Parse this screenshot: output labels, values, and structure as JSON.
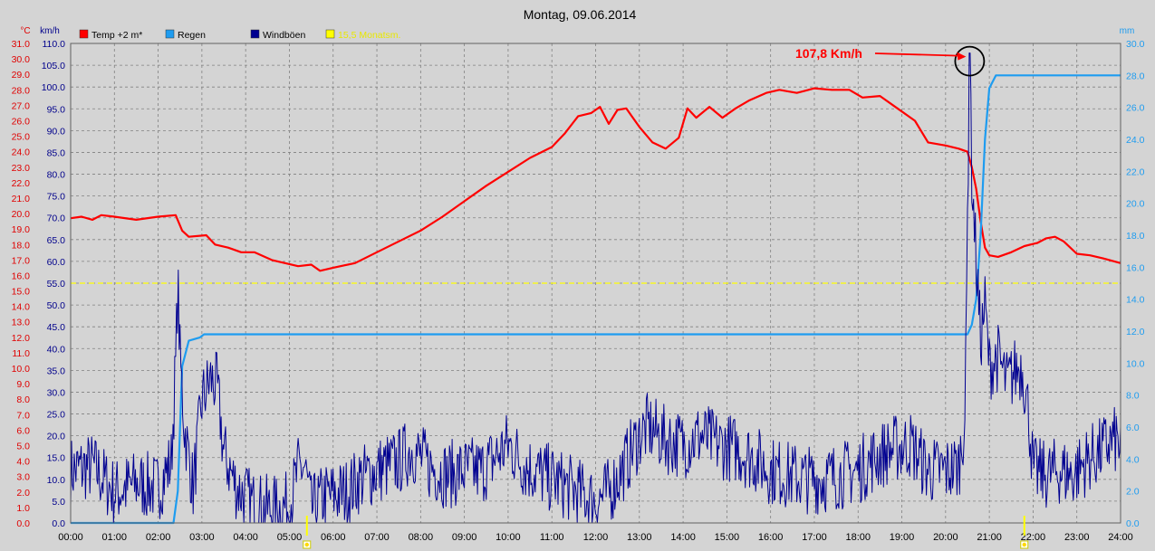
{
  "chart_data": {
    "type": "line",
    "title": "Montag, 09.06.2014",
    "axis_units": {
      "temp": "°C",
      "wind": "km/h",
      "rain": "mm"
    },
    "x_axis": {
      "range_hours": [
        0,
        24
      ],
      "tick_labels": [
        "00:00",
        "01:00",
        "02:00",
        "03:00",
        "04:00",
        "05:00",
        "06:00",
        "07:00",
        "08:00",
        "09:00",
        "10:00",
        "11:00",
        "12:00",
        "13:00",
        "14:00",
        "15:00",
        "16:00",
        "17:00",
        "18:00",
        "19:00",
        "20:00",
        "21:00",
        "22:00",
        "23:00",
        "24:00"
      ]
    },
    "temp_axis": {
      "range": [
        0,
        31
      ],
      "tick_labels": [
        "0.0",
        "1.0",
        "2.0",
        "3.0",
        "4.0",
        "5.0",
        "6.0",
        "7.0",
        "8.0",
        "9.0",
        "10.0",
        "11.0",
        "12.0",
        "13.0",
        "14.0",
        "15.0",
        "16.0",
        "17.0",
        "18.0",
        "19.0",
        "20.0",
        "21.0",
        "22.0",
        "23.0",
        "24.0",
        "25.0",
        "26.0",
        "27.0",
        "28.0",
        "29.0",
        "30.0",
        "31.0"
      ]
    },
    "wind_axis": {
      "range": [
        0,
        110
      ],
      "tick_labels": [
        "0.0",
        "5.0",
        "10.0",
        "15.0",
        "20.0",
        "25.0",
        "30.0",
        "35.0",
        "40.0",
        "45.0",
        "50.0",
        "55.0",
        "60.0",
        "65.0",
        "70.0",
        "75.0",
        "80.0",
        "85.0",
        "90.0",
        "95.0",
        "100.0",
        "105.0",
        "110.0"
      ]
    },
    "rain_axis": {
      "range": [
        0,
        30
      ],
      "tick_labels": [
        "0.0",
        "2.0",
        "4.0",
        "6.0",
        "8.0",
        "10.0",
        "12.0",
        "14.0",
        "16.0",
        "18.0",
        "20.0",
        "22.0",
        "24.0",
        "26.0",
        "28.0",
        "30.0"
      ]
    },
    "grid": true,
    "legend": [
      {
        "label": "Temp +2 m*",
        "color": "#ff0000"
      },
      {
        "label": "Regen",
        "color": "#1e9cf0"
      },
      {
        "label": "Windböen",
        "color": "#000090"
      },
      {
        "label": "15,5 Monatsm.",
        "color": "#ffff00"
      }
    ],
    "reference_line": {
      "axis": "temp",
      "value": 15.5,
      "color": "#ffff00",
      "style": "dashed"
    },
    "sun_markers_hours": [
      5.4,
      21.8
    ],
    "series": [
      {
        "name": "Temp +2 m*",
        "axis": "temp",
        "color": "#ff0000",
        "points": [
          [
            0,
            19.7
          ],
          [
            0.25,
            19.8
          ],
          [
            0.5,
            19.6
          ],
          [
            0.7,
            19.9
          ],
          [
            1,
            19.8
          ],
          [
            1.5,
            19.6
          ],
          [
            2,
            19.8
          ],
          [
            2.4,
            19.9
          ],
          [
            2.55,
            18.9
          ],
          [
            2.7,
            18.5
          ],
          [
            3.1,
            18.6
          ],
          [
            3.3,
            18.0
          ],
          [
            3.6,
            17.8
          ],
          [
            3.9,
            17.5
          ],
          [
            4.2,
            17.5
          ],
          [
            4.6,
            17.0
          ],
          [
            4.9,
            16.8
          ],
          [
            5.2,
            16.6
          ],
          [
            5.5,
            16.7
          ],
          [
            5.7,
            16.3
          ],
          [
            6,
            16.5
          ],
          [
            6.5,
            16.8
          ],
          [
            7,
            17.5
          ],
          [
            7.5,
            18.2
          ],
          [
            8,
            18.9
          ],
          [
            8.5,
            19.8
          ],
          [
            9,
            20.8
          ],
          [
            9.5,
            21.8
          ],
          [
            10,
            22.7
          ],
          [
            10.5,
            23.6
          ],
          [
            11,
            24.3
          ],
          [
            11.3,
            25.2
          ],
          [
            11.6,
            26.3
          ],
          [
            11.9,
            26.5
          ],
          [
            12.1,
            26.9
          ],
          [
            12.3,
            25.8
          ],
          [
            12.5,
            26.7
          ],
          [
            12.7,
            26.8
          ],
          [
            13,
            25.6
          ],
          [
            13.3,
            24.6
          ],
          [
            13.6,
            24.2
          ],
          [
            13.9,
            24.9
          ],
          [
            14.1,
            26.8
          ],
          [
            14.3,
            26.2
          ],
          [
            14.6,
            26.9
          ],
          [
            14.9,
            26.2
          ],
          [
            15.2,
            26.8
          ],
          [
            15.5,
            27.3
          ],
          [
            15.9,
            27.8
          ],
          [
            16.2,
            28.0
          ],
          [
            16.6,
            27.8
          ],
          [
            17,
            28.1
          ],
          [
            17.4,
            28.0
          ],
          [
            17.8,
            28.0
          ],
          [
            18.1,
            27.5
          ],
          [
            18.5,
            27.6
          ],
          [
            18.9,
            26.8
          ],
          [
            19.3,
            26.0
          ],
          [
            19.6,
            24.6
          ],
          [
            20,
            24.4
          ],
          [
            20.3,
            24.2
          ],
          [
            20.5,
            24.0
          ],
          [
            20.6,
            23.0
          ],
          [
            20.7,
            21.6
          ],
          [
            20.8,
            19.5
          ],
          [
            20.9,
            17.8
          ],
          [
            21.0,
            17.3
          ],
          [
            21.2,
            17.2
          ],
          [
            21.5,
            17.5
          ],
          [
            21.8,
            17.9
          ],
          [
            22.1,
            18.1
          ],
          [
            22.3,
            18.4
          ],
          [
            22.5,
            18.5
          ],
          [
            22.7,
            18.2
          ],
          [
            23,
            17.4
          ],
          [
            23.3,
            17.3
          ],
          [
            23.6,
            17.1
          ],
          [
            24,
            16.8
          ]
        ]
      },
      {
        "name": "Regen",
        "axis": "rain",
        "color": "#1e9cf0",
        "points": [
          [
            0,
            0.0
          ],
          [
            2.35,
            0.0
          ],
          [
            2.45,
            2.0
          ],
          [
            2.55,
            9.8
          ],
          [
            2.7,
            11.4
          ],
          [
            2.95,
            11.6
          ],
          [
            3.05,
            11.8
          ],
          [
            20.5,
            11.8
          ],
          [
            20.6,
            12.4
          ],
          [
            20.7,
            14.0
          ],
          [
            20.8,
            18.0
          ],
          [
            20.9,
            24.0
          ],
          [
            21.0,
            27.2
          ],
          [
            21.15,
            28.0
          ],
          [
            24,
            28.0
          ]
        ]
      },
      {
        "name": "Windböen",
        "axis": "wind",
        "color": "#000090",
        "seed": 7,
        "noise": 8,
        "anchors": [
          [
            0,
            12
          ],
          [
            0.5,
            13
          ],
          [
            1,
            7
          ],
          [
            1.5,
            9
          ],
          [
            2,
            8
          ],
          [
            2.3,
            14
          ],
          [
            2.4,
            36
          ],
          [
            2.45,
            55
          ],
          [
            2.5,
            38
          ],
          [
            2.6,
            22
          ],
          [
            2.8,
            8
          ],
          [
            3.0,
            28
          ],
          [
            3.2,
            33
          ],
          [
            3.35,
            31
          ],
          [
            3.5,
            16
          ],
          [
            3.8,
            8
          ],
          [
            4.2,
            4
          ],
          [
            4.6,
            3
          ],
          [
            5,
            4
          ],
          [
            5.2,
            12
          ],
          [
            5.35,
            13
          ],
          [
            5.5,
            3
          ],
          [
            5.8,
            6
          ],
          [
            6.3,
            7
          ],
          [
            6.6,
            10
          ],
          [
            7,
            12
          ],
          [
            7.5,
            14
          ],
          [
            7.8,
            17
          ],
          [
            8.2,
            13
          ],
          [
            8.6,
            11
          ],
          [
            9,
            12
          ],
          [
            9.4,
            12
          ],
          [
            9.8,
            16
          ],
          [
            10,
            18
          ],
          [
            10.4,
            13
          ],
          [
            10.8,
            11
          ],
          [
            11.2,
            9
          ],
          [
            11.6,
            7
          ],
          [
            12,
            5
          ],
          [
            12.3,
            7
          ],
          [
            12.6,
            12
          ],
          [
            13,
            20
          ],
          [
            13.2,
            22
          ],
          [
            13.6,
            19
          ],
          [
            14,
            18
          ],
          [
            14.4,
            20
          ],
          [
            14.8,
            18
          ],
          [
            15.2,
            17
          ],
          [
            15.6,
            15
          ],
          [
            16,
            12
          ],
          [
            16.4,
            11
          ],
          [
            16.8,
            10
          ],
          [
            17.2,
            10
          ],
          [
            17.6,
            11
          ],
          [
            18,
            12
          ],
          [
            18.4,
            15
          ],
          [
            18.8,
            17
          ],
          [
            19.2,
            18
          ],
          [
            19.6,
            12
          ],
          [
            20,
            12
          ],
          [
            20.3,
            13
          ],
          [
            20.45,
            25
          ],
          [
            20.5,
            70
          ],
          [
            20.55,
            107.8
          ],
          [
            20.6,
            80
          ],
          [
            20.7,
            60
          ],
          [
            20.8,
            42
          ],
          [
            20.9,
            50
          ],
          [
            21,
            36
          ],
          [
            21.2,
            38
          ],
          [
            21.4,
            32
          ],
          [
            21.6,
            35
          ],
          [
            21.75,
            36
          ],
          [
            21.9,
            25
          ],
          [
            22.0,
            12
          ],
          [
            22.3,
            11
          ],
          [
            22.6,
            12
          ],
          [
            22.9,
            11
          ],
          [
            23.1,
            13
          ],
          [
            23.3,
            15
          ],
          [
            23.5,
            16
          ],
          [
            23.7,
            18
          ],
          [
            23.9,
            19
          ],
          [
            24,
            17
          ]
        ]
      }
    ],
    "annotations": [
      {
        "text": "107,8 Km/h",
        "color": "#ff0000",
        "points_to_hour": 20.55,
        "points_to_wind": 107.8
      }
    ]
  }
}
